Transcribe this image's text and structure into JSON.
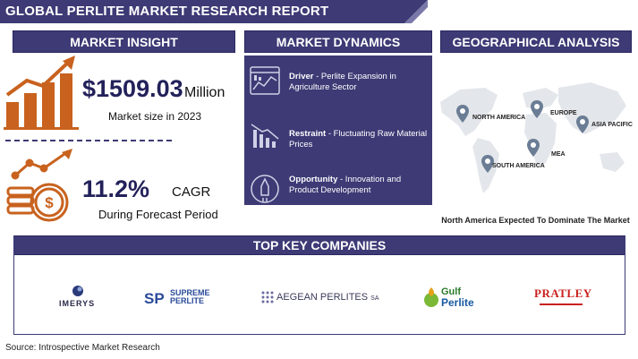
{
  "header": {
    "title": "GLOBAL PERLITE MARKET RESEARCH REPORT"
  },
  "sections": {
    "insight": "MARKET INSIGHT",
    "dynamics": "MARKET DYNAMICS",
    "geo": "GEOGRAPHICAL ANALYSIS",
    "companies": "TOP KEY COMPANIES"
  },
  "insight": {
    "market_value": "$1509.03",
    "market_unit": "Million",
    "market_caption": "Market size in 2023",
    "cagr_value": "11.2%",
    "cagr_label": "CAGR",
    "cagr_caption": "During Forecast Period"
  },
  "dynamics": {
    "driver_label": "Driver",
    "driver_text": " - Perlite Expansion in Agriculture Sector",
    "restraint_label": "Restraint",
    "restraint_text": " -  Fluctuating Raw Material Prices",
    "opportunity_label": "Opportunity",
    "opportunity_text": " - Innovation and Product Development"
  },
  "geo": {
    "regions": [
      "NORTH AMERICA",
      "EUROPE",
      "ASIA PACIFIC",
      "MEA",
      "SOUTH AMERICA"
    ],
    "caption": "North America Expected To Dominate The Market"
  },
  "companies": {
    "imerys": "IMERYS",
    "supreme_top": "SUPREME",
    "supreme_bottom": "PERLITE",
    "aegean": "AEGEAN PERLITES",
    "aegean_suffix": "SA",
    "gulf_top": "Gulf",
    "gulf_bottom": "Perlite",
    "pratley": "PRATLEY"
  },
  "colors": {
    "navy": "#3d3a75",
    "accent": "#c8621e",
    "pin": "#6b7d95"
  },
  "source": "Source: Introspective Market Research"
}
